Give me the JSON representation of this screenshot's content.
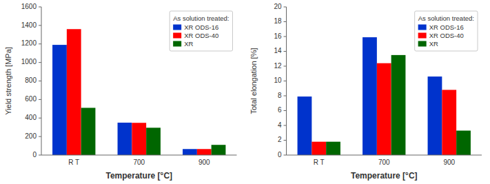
{
  "chart_data": [
    {
      "type": "bar",
      "xlabel": "Temperature [°C]",
      "ylabel": "Yield strength [MPa]",
      "categories": [
        "R T",
        "700",
        "900"
      ],
      "series": [
        {
          "name": "XR ODS-16",
          "color": "#0033cc",
          "values": [
            1190,
            350,
            65
          ]
        },
        {
          "name": "XR ODS-40",
          "color": "#ff0000",
          "values": [
            1360,
            348,
            65
          ]
        },
        {
          "name": "XR",
          "color": "#006600",
          "values": [
            510,
            295,
            110
          ]
        }
      ],
      "ylim": [
        0,
        1600
      ],
      "yticks": [
        0,
        200,
        400,
        600,
        800,
        1000,
        1200,
        1400,
        1600
      ],
      "legend": "upper right",
      "legend_title": "As solution treated:",
      "grid": false
    },
    {
      "type": "bar",
      "xlabel": "Temperature [°C]",
      "ylabel": "Total elongation [%]",
      "categories": [
        "R T",
        "700",
        "900"
      ],
      "series": [
        {
          "name": "XR ODS-16",
          "color": "#0033cc",
          "values": [
            7.9,
            15.9,
            10.6
          ]
        },
        {
          "name": "XR ODS-40",
          "color": "#ff0000",
          "values": [
            1.8,
            12.4,
            8.8
          ]
        },
        {
          "name": "XR",
          "color": "#006600",
          "values": [
            1.8,
            13.5,
            3.3
          ]
        }
      ],
      "ylim": [
        0,
        20
      ],
      "yticks": [
        0,
        2,
        4,
        6,
        8,
        10,
        12,
        14,
        16,
        18,
        20
      ],
      "legend": "upper right",
      "legend_title": "As solution treated:",
      "grid": false
    }
  ]
}
